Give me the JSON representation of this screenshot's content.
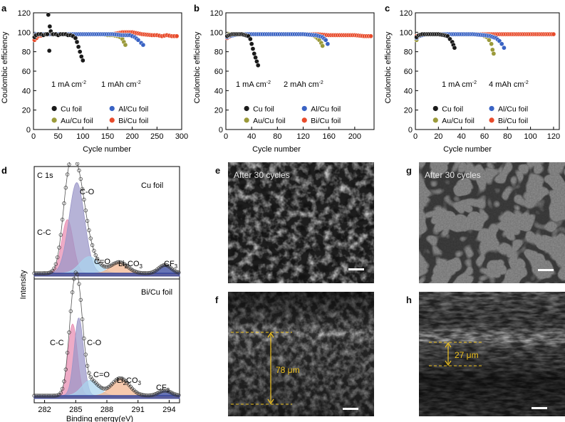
{
  "figure": {
    "colors": {
      "cu": "#1a1a1a",
      "al": "#3a63c4",
      "au": "#9b9a3a",
      "bi": "#e84a2a",
      "pink": "#e88ab0",
      "violet": "#9a96c8",
      "lightblue": "#a9d4ee",
      "peach": "#f2b48e",
      "navy": "#2d3f9a",
      "scalebar": "#ffffff",
      "annot": "#f0c31f"
    },
    "panels": {
      "a": {
        "letter": "a",
        "cond1": "1 mA cm",
        "cond2": "1 mAh cm",
        "sup": "-2"
      },
      "b": {
        "letter": "b",
        "cond1": "1 mA cm",
        "cond2": "2 mAh cm",
        "sup": "-2"
      },
      "c": {
        "letter": "c",
        "cond1": "1 mA cm",
        "cond2": "4 mAh cm",
        "sup": "-2"
      },
      "d": {
        "letter": "d",
        "title": "C 1s",
        "top_label": "Cu foil",
        "bottom_label": "Bi/Cu foil",
        "ylabel": "Intensity",
        "xlabel": "Binding energy(eV)",
        "peaks": {
          "cc": "C-C",
          "co": "C-O",
          "ceo": "C=O",
          "li": "Li",
          "li2": "2",
          "co3": "CO",
          "co3sub": "3",
          "cf": "CF",
          "cfsub": "3"
        }
      },
      "e": {
        "letter": "e",
        "caption": "After 30 cycles"
      },
      "f": {
        "letter": "f",
        "measure": "78 μm"
      },
      "g": {
        "letter": "g",
        "caption": "After 30 cycles"
      },
      "h": {
        "letter": "h",
        "measure": "27 μm"
      }
    },
    "legend": {
      "cu": "Cu foil",
      "al": "Al/Cu foil",
      "au": "Au/Cu foil",
      "bi": "Bi/Cu foil"
    }
  },
  "chart_data": [
    {
      "id": "a",
      "type": "scatter",
      "xlabel": "Cycle number",
      "ylabel": "Coulombic efficiency",
      "xlim": [
        0,
        300
      ],
      "ylim": [
        0,
        120
      ],
      "xticks": [
        "0",
        "50",
        "100",
        "150",
        "200",
        "250",
        "300"
      ],
      "yticks": [
        "0",
        "20",
        "40",
        "60",
        "80",
        "100",
        "120"
      ],
      "series": [
        {
          "name": "Cu foil",
          "color": "#1a1a1a",
          "x": [
            2,
            5,
            10,
            15,
            20,
            25,
            28,
            30,
            32,
            33,
            35,
            38,
            40,
            45,
            50,
            55,
            60,
            65,
            70,
            75,
            80,
            85,
            88,
            91,
            94,
            97,
            100
          ],
          "y": [
            95,
            97,
            98,
            98,
            97,
            98,
            98,
            118,
            81,
            106,
            101,
            98,
            98,
            98,
            97,
            98,
            98,
            98,
            97,
            97,
            96,
            94,
            90,
            85,
            80,
            75,
            71
          ]
        },
        {
          "name": "Au/Cu foil",
          "color": "#9b9a3a",
          "x": [
            5,
            20,
            40,
            60,
            80,
            100,
            120,
            140,
            150,
            160,
            170,
            175,
            180,
            183,
            186
          ],
          "y": [
            98,
            98,
            98,
            98,
            98,
            98,
            98,
            98,
            97,
            97,
            96,
            95,
            93,
            90,
            87
          ]
        },
        {
          "name": "Al/Cu foil",
          "color": "#3a63c4",
          "x": [
            5,
            20,
            40,
            60,
            80,
            100,
            120,
            140,
            160,
            180,
            195,
            205,
            212,
            218,
            222
          ],
          "y": [
            98,
            98,
            98,
            98,
            98,
            98,
            98,
            98,
            98,
            97,
            97,
            95,
            92,
            89,
            87
          ]
        },
        {
          "name": "Bi/Cu foil",
          "color": "#e84a2a",
          "x": [
            2,
            10,
            20,
            30,
            40,
            60,
            80,
            100,
            120,
            140,
            160,
            180,
            200,
            220,
            240,
            250,
            260,
            270,
            280,
            290
          ],
          "y": [
            92,
            96,
            97,
            98,
            98,
            98,
            98,
            98,
            98,
            98,
            98,
            100,
            100,
            98,
            97,
            97,
            96,
            97,
            96,
            96
          ]
        }
      ]
    },
    {
      "id": "b",
      "type": "scatter",
      "xlabel": "Cycle number",
      "ylabel": "Coulombic efficiency",
      "xlim": [
        0,
        230
      ],
      "ylim": [
        0,
        120
      ],
      "xticks": [
        "0",
        "40",
        "80",
        "120",
        "160",
        "200"
      ],
      "yticks": [
        "0",
        "20",
        "40",
        "60",
        "80",
        "100",
        "120"
      ],
      "series": [
        {
          "name": "Cu foil",
          "color": "#1a1a1a",
          "x": [
            2,
            5,
            10,
            15,
            20,
            25,
            30,
            35,
            38,
            40,
            42,
            44,
            46,
            48,
            50
          ],
          "y": [
            96,
            97,
            98,
            98,
            98,
            98,
            97,
            96,
            93,
            88,
            83,
            78,
            74,
            70,
            66
          ]
        },
        {
          "name": "Au/Cu foil",
          "color": "#9b9a3a",
          "x": [
            5,
            20,
            40,
            60,
            80,
            100,
            120,
            135,
            140,
            145,
            148,
            150
          ],
          "y": [
            98,
            98,
            98,
            98,
            98,
            98,
            98,
            97,
            95,
            92,
            89,
            86
          ]
        },
        {
          "name": "Al/Cu foil",
          "color": "#3a63c4",
          "x": [
            2,
            5,
            20,
            40,
            60,
            80,
            100,
            120,
            140,
            150,
            155,
            158
          ],
          "y": [
            95,
            96,
            98,
            98,
            98,
            98,
            98,
            98,
            97,
            95,
            92,
            88
          ]
        },
        {
          "name": "Bi/Cu foil",
          "color": "#e84a2a",
          "x": [
            2,
            10,
            20,
            40,
            60,
            80,
            100,
            120,
            140,
            160,
            180,
            200,
            215,
            225
          ],
          "y": [
            94,
            97,
            98,
            98,
            98,
            98,
            98,
            98,
            98,
            97,
            97,
            97,
            96,
            96
          ]
        }
      ]
    },
    {
      "id": "c",
      "type": "scatter",
      "xlabel": "Cycle number",
      "ylabel": "Coulombic efficiency",
      "xlim": [
        0,
        125
      ],
      "ylim": [
        0,
        120
      ],
      "xticks": [
        "0",
        "20",
        "40",
        "60",
        "80",
        "100",
        "120"
      ],
      "yticks": [
        "0",
        "20",
        "40",
        "60",
        "80",
        "100",
        "120"
      ],
      "series": [
        {
          "name": "Cu foil",
          "color": "#1a1a1a",
          "x": [
            1,
            3,
            6,
            10,
            15,
            20,
            25,
            28,
            30,
            32,
            33,
            34
          ],
          "y": [
            95,
            97,
            98,
            98,
            98,
            98,
            97,
            96,
            93,
            90,
            87,
            84
          ]
        },
        {
          "name": "Au/Cu foil",
          "color": "#9b9a3a",
          "x": [
            1,
            3,
            6,
            10,
            20,
            30,
            40,
            50,
            58,
            62,
            64,
            66,
            67,
            68
          ],
          "y": [
            92,
            96,
            97,
            98,
            98,
            98,
            98,
            98,
            97,
            95,
            92,
            88,
            82,
            78
          ]
        },
        {
          "name": "Al/Cu foil",
          "color": "#3a63c4",
          "x": [
            1,
            3,
            6,
            10,
            20,
            30,
            40,
            50,
            60,
            65,
            70,
            73,
            75,
            77
          ],
          "y": [
            94,
            96,
            97,
            98,
            98,
            98,
            98,
            98,
            97,
            96,
            94,
            91,
            88,
            84
          ]
        },
        {
          "name": "Bi/Cu foil",
          "color": "#e84a2a",
          "x": [
            1,
            5,
            10,
            20,
            30,
            40,
            50,
            60,
            70,
            80,
            90,
            100,
            110,
            120
          ],
          "y": [
            96,
            97,
            98,
            98,
            98,
            98,
            98,
            98,
            98,
            98,
            98,
            98,
            98,
            98
          ]
        }
      ]
    },
    {
      "id": "d",
      "type": "line",
      "xlabel": "Binding energy(eV)",
      "ylabel": "Intensity",
      "xlim": [
        281,
        295
      ],
      "xticks": [
        "282",
        "285",
        "288",
        "291",
        "294"
      ],
      "series": [
        {
          "name": "Cu foil",
          "peaks": [
            {
              "label": "C-C",
              "center": 284.2,
              "height": 0.58,
              "sigma": 0.55,
              "color": "#e88ab0"
            },
            {
              "label": "C-O",
              "center": 285.1,
              "height": 0.98,
              "sigma": 0.75,
              "color": "#9a96c8"
            },
            {
              "label": "C=O",
              "center": 286.3,
              "height": 0.18,
              "sigma": 0.9,
              "color": "#a9d4ee"
            },
            {
              "label": "Li2CO3",
              "center": 289.2,
              "height": 0.12,
              "sigma": 0.8,
              "color": "#f2b48e"
            },
            {
              "label": "CF3",
              "center": 293.6,
              "height": 0.09,
              "sigma": 0.6,
              "color": "#2d3f9a"
            }
          ]
        },
        {
          "name": "Bi/Cu foil",
          "peaks": [
            {
              "label": "C-C",
              "center": 284.7,
              "height": 0.7,
              "sigma": 0.45,
              "color": "#e88ab0"
            },
            {
              "label": "C-O",
              "center": 285.3,
              "height": 0.76,
              "sigma": 0.45,
              "color": "#9a96c8"
            },
            {
              "label": "C=O",
              "center": 286.4,
              "height": 0.15,
              "sigma": 0.8,
              "color": "#a9d4ee"
            },
            {
              "label": "Li2CO3",
              "center": 289.3,
              "height": 0.17,
              "sigma": 0.85,
              "color": "#f2b48e"
            },
            {
              "label": "CF3",
              "center": 293.6,
              "height": 0.05,
              "sigma": 0.6,
              "color": "#2d3f9a"
            }
          ]
        }
      ]
    }
  ]
}
